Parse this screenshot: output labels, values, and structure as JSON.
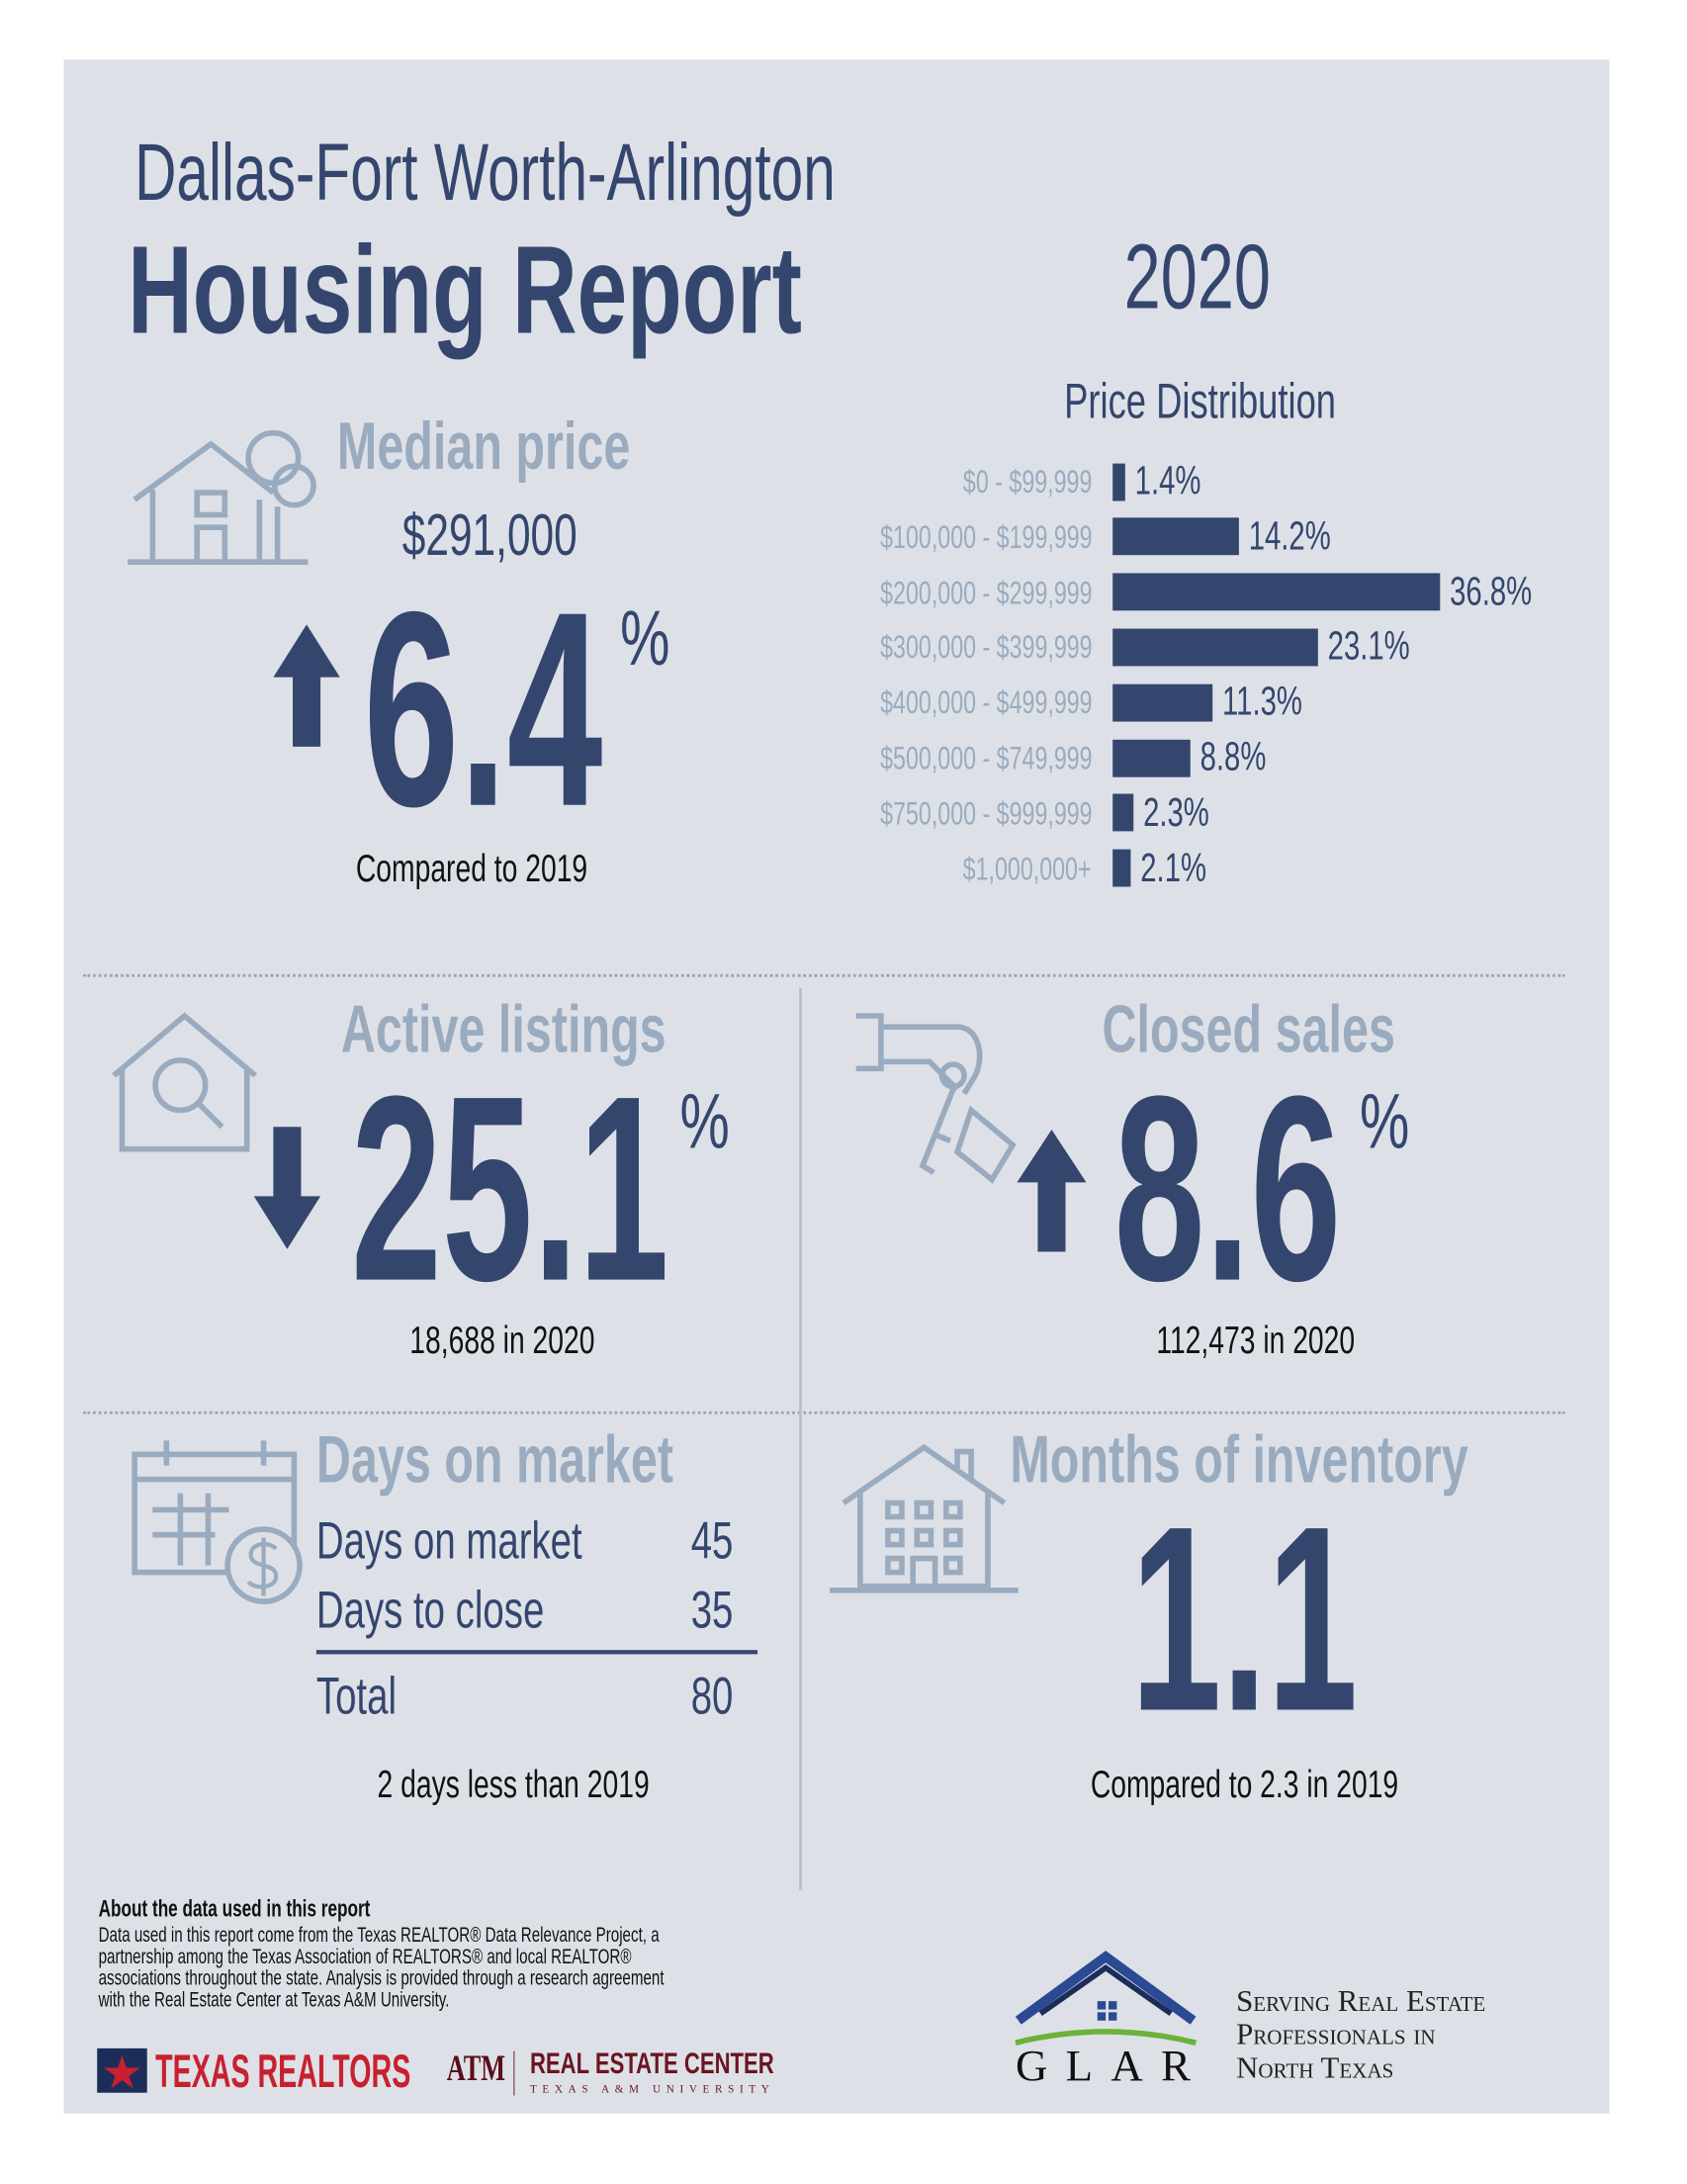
{
  "header": {
    "region": "Dallas-Fort Worth-Arlington",
    "title": "Housing Report",
    "year": "2020"
  },
  "median": {
    "label": "Median price",
    "price": "$291,000",
    "change": "6.4",
    "unit": "%",
    "direction": "up",
    "note": "Compared to 2019"
  },
  "active": {
    "label": "Active listings",
    "change": "25.1",
    "unit": "%",
    "direction": "down",
    "note": "18,688 in 2020"
  },
  "closed": {
    "label": "Closed sales",
    "change": "8.6",
    "unit": "%",
    "direction": "up",
    "note": "112,473 in 2020"
  },
  "dom": {
    "label": "Days on market",
    "rows": [
      {
        "label": "Days on market",
        "value": "45"
      },
      {
        "label": "Days to close",
        "value": "35"
      }
    ],
    "total_label": "Total",
    "total_value": "80",
    "note": "2 days less than 2019"
  },
  "moi": {
    "label": "Months of inventory",
    "value": "1.1",
    "note": "Compared to 2.3 in 2019"
  },
  "footer": {
    "about_title": "About the data used in this report",
    "about_lines": [
      "Data used in this report come from the Texas REALTOR® Data Relevance Project, a",
      "partnership among the Texas Association of REALTORS® and local REALTOR®",
      "associations throughout the state. Analysis is provided through a research agreement",
      "with the Real Estate Center at Texas A&M University."
    ],
    "logo_texas_realtors": "TEXAS REALTORS",
    "logo_atm": "ATM",
    "logo_rec": "REAL ESTATE CENTER",
    "logo_rec_sub": "TEXAS A&M UNIVERSITY",
    "logo_glar": "GLAR",
    "glar_tagline": [
      "Serving Real Estate",
      "Professionals in",
      "North Texas"
    ]
  },
  "colors": {
    "navy": "#34466e",
    "muted": "#9aabbf",
    "background": "#dde1e7"
  },
  "chart_data": {
    "type": "bar",
    "orientation": "horizontal",
    "title": "Price Distribution",
    "categories": [
      "$0 - $99,999",
      "$100,000 - $199,999",
      "$200,000 - $299,999",
      "$300,000 - $399,999",
      "$400,000 - $499,999",
      "$500,000 - $749,999",
      "$750,000 - $999,999",
      "$1,000,000+"
    ],
    "values": [
      1.4,
      14.2,
      36.8,
      23.1,
      11.3,
      8.8,
      2.3,
      2.1
    ],
    "labels": [
      "1.4%",
      "14.2%",
      "36.8%",
      "23.1%",
      "11.3%",
      "8.8%",
      "2.3%",
      "2.1%"
    ],
    "unit": "%",
    "grid": false
  }
}
